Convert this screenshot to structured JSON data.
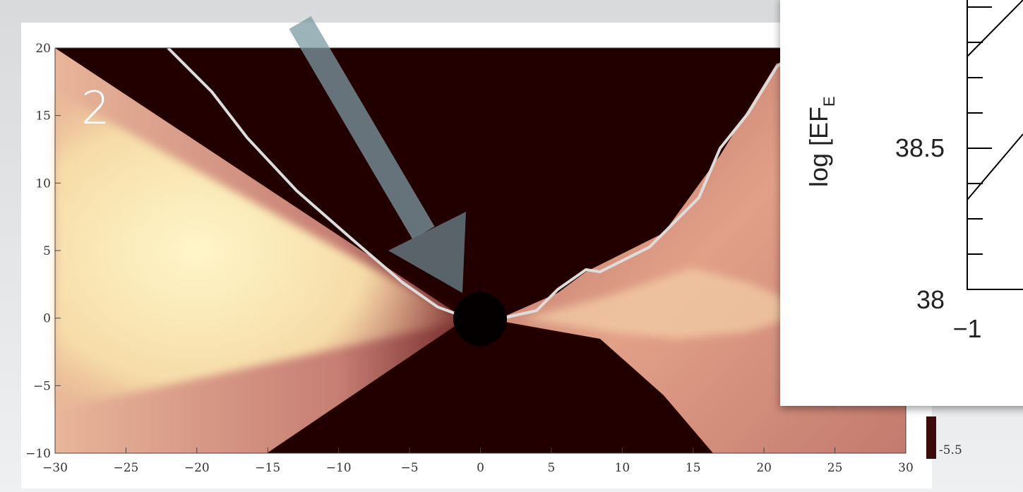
{
  "slide": {
    "panel_number": "2",
    "plot": {
      "x_ticks": [
        "−30",
        "−25",
        "−20",
        "−15",
        "−10",
        "−5",
        "0",
        "5",
        "10",
        "15",
        "20",
        "25",
        "30"
      ],
      "y_ticks": [
        "20",
        "15",
        "10",
        "5",
        "0",
        "−5",
        "−10"
      ],
      "colorbar_label": "-5.5"
    },
    "inset": {
      "y_label": "log [EF",
      "y_label_sub": "E",
      "y_ticks": [
        "38.5",
        "38"
      ],
      "x_ticks": [
        "−1"
      ]
    }
  }
}
